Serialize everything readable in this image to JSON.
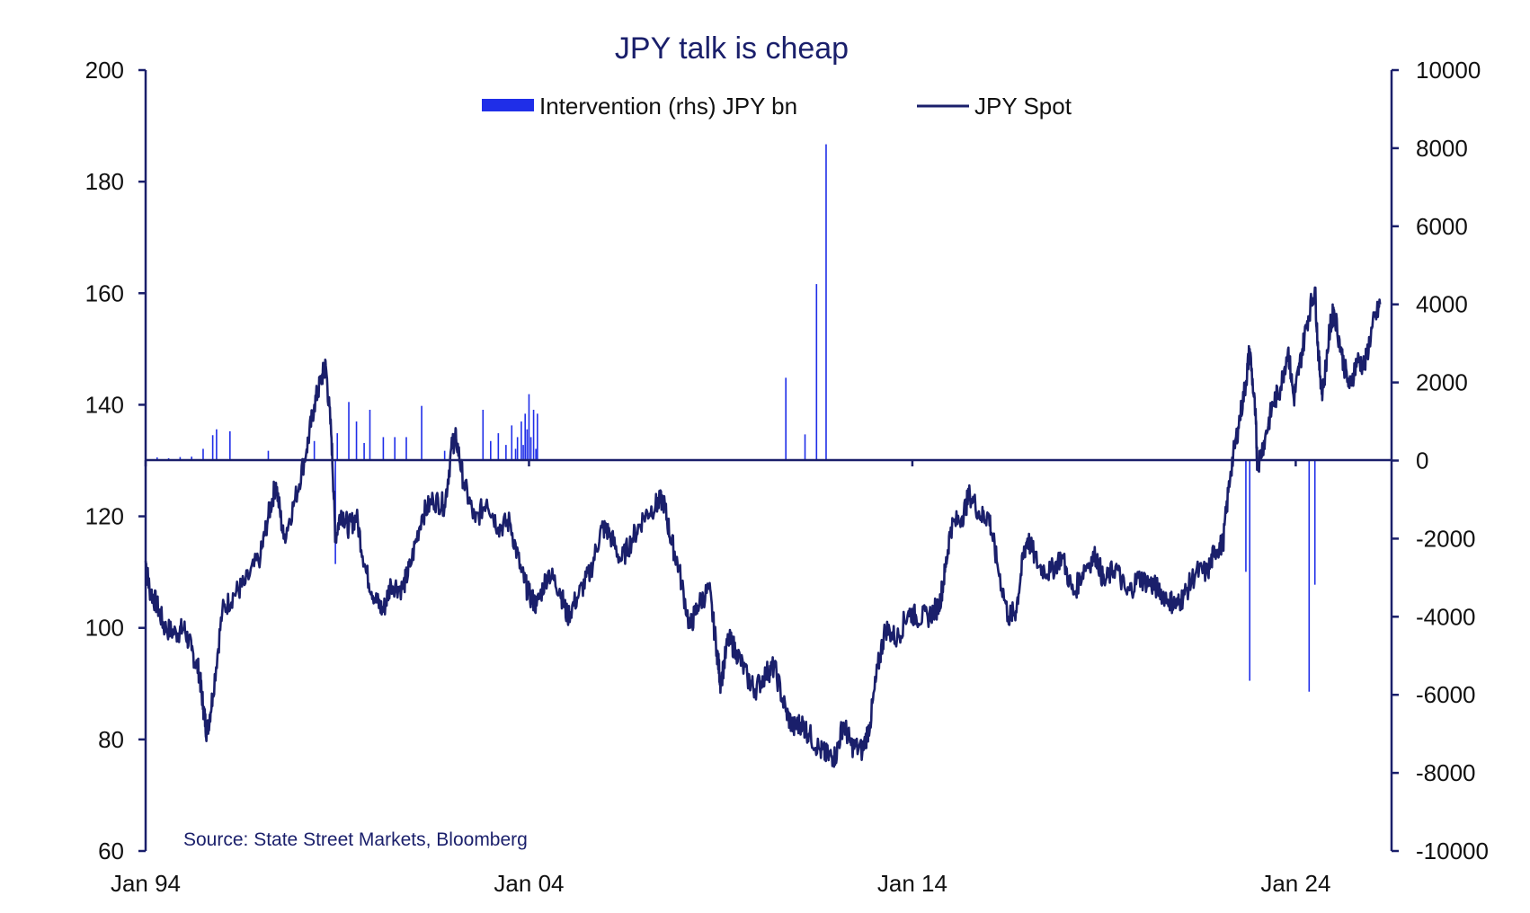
{
  "chart_data": {
    "type": "line+bar",
    "title": "JPY talk is cheap",
    "source": "Source: State Street Markets, Bloomberg",
    "x_ticks": [
      "Jan 94",
      "Jan 04",
      "Jan 14",
      "Jan 24"
    ],
    "x_range": [
      1994.0,
      2026.5
    ],
    "left_axis": {
      "min": 60,
      "max": 200,
      "ticks": [
        "200",
        "180",
        "160",
        "140",
        "120",
        "100",
        "80",
        "60"
      ]
    },
    "right_axis": {
      "min": -10000,
      "max": 10000,
      "ticks": [
        "10000",
        "8000",
        "6000",
        "4000",
        "2000",
        "0",
        "-2000",
        "-4000",
        "-6000",
        "-8000",
        "-10000"
      ]
    },
    "colors": {
      "spot": "#1a1f6b",
      "intervention": "#1f2ee8",
      "axis": "#1a1f6b",
      "title": "#1a1f6b"
    },
    "series": [
      {
        "name": "JPY Spot",
        "axis": "left",
        "points": [
          [
            1994.0,
            112
          ],
          [
            1994.1,
            107
          ],
          [
            1994.3,
            104
          ],
          [
            1994.5,
            100
          ],
          [
            1994.8,
            99
          ],
          [
            1995.0,
            100
          ],
          [
            1995.2,
            96
          ],
          [
            1995.4,
            92
          ],
          [
            1995.5,
            86
          ],
          [
            1995.6,
            81
          ],
          [
            1995.75,
            88
          ],
          [
            1996.0,
            103
          ],
          [
            1996.3,
            106
          ],
          [
            1996.6,
            108
          ],
          [
            1997.0,
            113
          ],
          [
            1997.2,
            120
          ],
          [
            1997.4,
            126
          ],
          [
            1997.6,
            116
          ],
          [
            1997.9,
            123
          ],
          [
            1998.2,
            132
          ],
          [
            1998.4,
            140
          ],
          [
            1998.6,
            145
          ],
          [
            1998.7,
            147
          ],
          [
            1998.85,
            134
          ],
          [
            1998.95,
            116
          ],
          [
            1999.1,
            121
          ],
          [
            1999.3,
            118
          ],
          [
            1999.5,
            120
          ],
          [
            1999.75,
            110
          ],
          [
            2000.0,
            105
          ],
          [
            2000.2,
            103
          ],
          [
            2000.4,
            108
          ],
          [
            2000.7,
            107
          ],
          [
            2000.9,
            111
          ],
          [
            2001.2,
            120
          ],
          [
            2001.5,
            123
          ],
          [
            2001.8,
            122
          ],
          [
            2002.0,
            133
          ],
          [
            2002.1,
            134
          ],
          [
            2002.3,
            126
          ],
          [
            2002.6,
            119
          ],
          [
            2002.9,
            123
          ],
          [
            2003.2,
            118
          ],
          [
            2003.5,
            119
          ],
          [
            2003.8,
            110
          ],
          [
            2004.0,
            106
          ],
          [
            2004.2,
            104
          ],
          [
            2004.5,
            110
          ],
          [
            2004.8,
            107
          ],
          [
            2005.0,
            102
          ],
          [
            2005.3,
            106
          ],
          [
            2005.6,
            110
          ],
          [
            2005.9,
            118
          ],
          [
            2006.1,
            117
          ],
          [
            2006.4,
            112
          ],
          [
            2006.7,
            116
          ],
          [
            2007.0,
            120
          ],
          [
            2007.3,
            122
          ],
          [
            2007.5,
            123
          ],
          [
            2007.7,
            116
          ],
          [
            2007.9,
            111
          ],
          [
            2008.2,
            100
          ],
          [
            2008.4,
            104
          ],
          [
            2008.7,
            107
          ],
          [
            2008.9,
            96
          ],
          [
            2009.0,
            90
          ],
          [
            2009.2,
            98
          ],
          [
            2009.4,
            96
          ],
          [
            2009.7,
            91
          ],
          [
            2009.9,
            89
          ],
          [
            2010.2,
            92
          ],
          [
            2010.4,
            93
          ],
          [
            2010.7,
            85
          ],
          [
            2010.9,
            82
          ],
          [
            2011.1,
            83
          ],
          [
            2011.3,
            81
          ],
          [
            2011.6,
            78
          ],
          [
            2011.8,
            77
          ],
          [
            2012.0,
            77
          ],
          [
            2012.2,
            83
          ],
          [
            2012.4,
            79
          ],
          [
            2012.7,
            78
          ],
          [
            2012.9,
            83
          ],
          [
            2013.1,
            93
          ],
          [
            2013.3,
            100
          ],
          [
            2013.6,
            98
          ],
          [
            2013.9,
            103
          ],
          [
            2014.1,
            102
          ],
          [
            2014.4,
            102
          ],
          [
            2014.7,
            104
          ],
          [
            2014.85,
            110
          ],
          [
            2015.0,
            118
          ],
          [
            2015.3,
            120
          ],
          [
            2015.5,
            124
          ],
          [
            2015.8,
            120
          ],
          [
            2016.0,
            120
          ],
          [
            2016.2,
            112
          ],
          [
            2016.5,
            102
          ],
          [
            2016.7,
            103
          ],
          [
            2016.9,
            113
          ],
          [
            2017.0,
            116
          ],
          [
            2017.3,
            111
          ],
          [
            2017.6,
            110
          ],
          [
            2017.9,
            113
          ],
          [
            2018.2,
            106
          ],
          [
            2018.5,
            111
          ],
          [
            2018.8,
            113
          ],
          [
            2019.0,
            108
          ],
          [
            2019.3,
            111
          ],
          [
            2019.6,
            106
          ],
          [
            2019.9,
            109
          ],
          [
            2020.2,
            108
          ],
          [
            2020.4,
            107
          ],
          [
            2020.7,
            105
          ],
          [
            2020.9,
            104
          ],
          [
            2021.1,
            106
          ],
          [
            2021.4,
            110
          ],
          [
            2021.7,
            110
          ],
          [
            2021.9,
            114
          ],
          [
            2022.1,
            115
          ],
          [
            2022.3,
            128
          ],
          [
            2022.5,
            136
          ],
          [
            2022.7,
            144
          ],
          [
            2022.8,
            150
          ],
          [
            2022.95,
            138
          ],
          [
            2023.0,
            129
          ],
          [
            2023.2,
            134
          ],
          [
            2023.4,
            140
          ],
          [
            2023.6,
            143
          ],
          [
            2023.8,
            150
          ],
          [
            2023.95,
            141
          ],
          [
            2024.1,
            147
          ],
          [
            2024.3,
            155
          ],
          [
            2024.5,
            161
          ],
          [
            2024.6,
            148
          ],
          [
            2024.7,
            142
          ],
          [
            2024.9,
            154
          ],
          [
            2025.0,
            157
          ],
          [
            2025.2,
            149
          ],
          [
            2025.4,
            143
          ],
          [
            2025.6,
            148
          ],
          [
            2025.8,
            147
          ],
          [
            2026.0,
            154
          ],
          [
            2026.2,
            158
          ]
        ]
      },
      {
        "name": "Intervention (rhs) JPY bn",
        "axis": "right",
        "bars": [
          [
            1994.3,
            80
          ],
          [
            1994.6,
            60
          ],
          [
            1994.9,
            90
          ],
          [
            1995.2,
            100
          ],
          [
            1995.5,
            300
          ],
          [
            1995.75,
            650
          ],
          [
            1995.85,
            800
          ],
          [
            1996.2,
            750
          ],
          [
            1997.2,
            250
          ],
          [
            1998.4,
            500
          ],
          [
            1998.95,
            -2650
          ],
          [
            1999.0,
            700
          ],
          [
            1999.3,
            1500
          ],
          [
            1999.5,
            1000
          ],
          [
            1999.7,
            450
          ],
          [
            1999.85,
            1300
          ],
          [
            2000.2,
            600
          ],
          [
            2000.5,
            600
          ],
          [
            2000.8,
            600
          ],
          [
            2001.2,
            1400
          ],
          [
            2001.8,
            250
          ],
          [
            2002.8,
            1300
          ],
          [
            2003.0,
            500
          ],
          [
            2003.2,
            700
          ],
          [
            2003.4,
            400
          ],
          [
            2003.55,
            900
          ],
          [
            2003.65,
            300
          ],
          [
            2003.7,
            600
          ],
          [
            2003.8,
            1000
          ],
          [
            2003.85,
            400
          ],
          [
            2003.9,
            1200
          ],
          [
            2003.95,
            800
          ],
          [
            2004.0,
            1700
          ],
          [
            2004.05,
            600
          ],
          [
            2004.12,
            1300
          ],
          [
            2004.18,
            300
          ],
          [
            2004.22,
            1200
          ],
          [
            2010.7,
            2120
          ],
          [
            2011.2,
            670
          ],
          [
            2011.5,
            4520
          ],
          [
            2011.75,
            8100
          ],
          [
            2022.7,
            -2850
          ],
          [
            2022.8,
            -5640
          ],
          [
            2024.35,
            -5920
          ],
          [
            2024.5,
            -3180
          ]
        ]
      }
    ]
  },
  "legend": {
    "intervention_label": "Intervention (rhs) JPY bn",
    "spot_label": "JPY Spot"
  }
}
